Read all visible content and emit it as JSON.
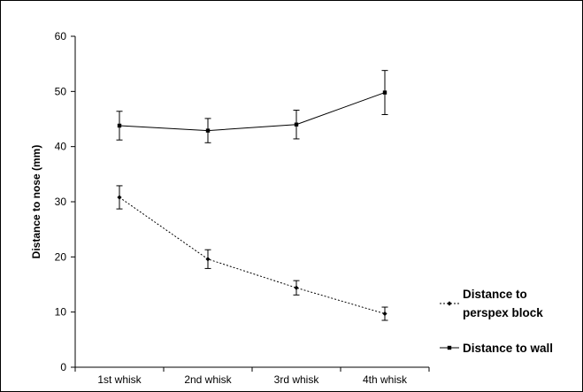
{
  "chart_data": {
    "type": "line",
    "categories": [
      "1st whisk",
      "2nd whisk",
      "3rd whisk",
      "4th whisk"
    ],
    "ylabel": "Distance to nose (mm)",
    "xlabel": "",
    "ylim": [
      0,
      60
    ],
    "yticks": [
      0,
      10,
      20,
      30,
      40,
      50,
      60
    ],
    "grid": false,
    "legend_position": "right",
    "series": [
      {
        "name": "Distance to wall",
        "style": "solid",
        "marker": "square",
        "color": "#000000",
        "values": [
          43.8,
          42.9,
          44.0,
          49.8
        ],
        "errors": [
          2.6,
          2.2,
          2.6,
          4.0
        ]
      },
      {
        "name": "Distance to perspex block",
        "style": "dotted",
        "marker": "diamond",
        "color": "#000000",
        "values": [
          30.8,
          19.6,
          14.4,
          9.7
        ],
        "errors": [
          2.1,
          1.7,
          1.3,
          1.2
        ]
      }
    ],
    "legend": {
      "entries": [
        {
          "series": 1,
          "lines": [
            "Distance to",
            "perspex block"
          ]
        },
        {
          "series": 0,
          "lines": [
            "Distance to wall"
          ]
        }
      ]
    }
  }
}
